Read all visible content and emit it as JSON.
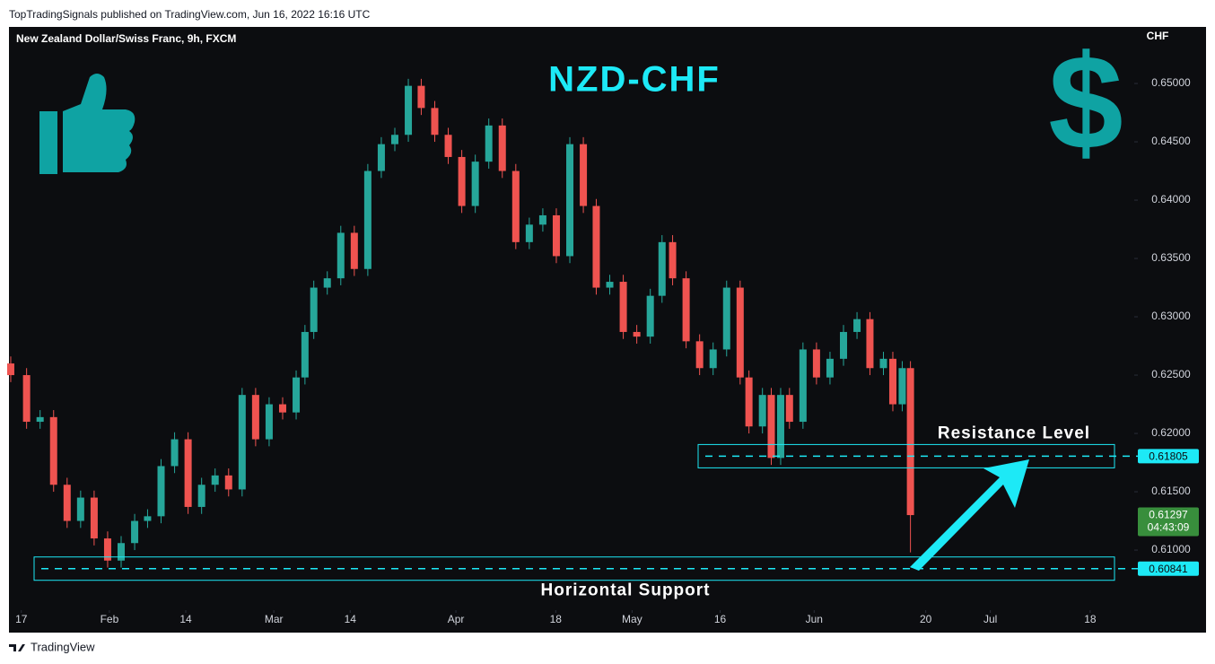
{
  "header": {
    "publisher": "TopTradingSignals published on TradingView.com, Jun 16, 2022 16:16 UTC"
  },
  "chart_data": {
    "type": "candlestick",
    "title": "NZD-CHF",
    "subtitle": "New Zealand Dollar/Swiss Franc, 9h, FXCM",
    "y_axis_label": "CHF",
    "icon_text": "$",
    "up_color": "#26a69a",
    "down_color": "#ef5350",
    "x": [
      15.2,
      17.9,
      20.2,
      22.5,
      24.8,
      27.1,
      29.4,
      31.7,
      34.0,
      36.3,
      38.5,
      40.8,
      43.1,
      45.4,
      47.7,
      50.0,
      52.3,
      54.6,
      56.9,
      59.2,
      61.5,
      63.8,
      65.3,
      66.8,
      69.1,
      71.4,
      73.7,
      76.0,
      78.3,
      80.6,
      82.9,
      85.1,
      87.4,
      89.7,
      92.0,
      94.3,
      96.6,
      98.9,
      101.2,
      103.5,
      105.8,
      108.1,
      110.4,
      112.7,
      114.9,
      117.2,
      119.5,
      121.8,
      124.1,
      126.1,
      127.9,
      130.2,
      132.5,
      134.8,
      137.1,
      139.4,
      140.9,
      143.2,
      144.7,
      146.3,
      147.8,
      150.1,
      152.4,
      154.7,
      157.0,
      159.3,
      161.5,
      163.8,
      165.4,
      167.0,
      168.4
    ],
    "open": [
      0.626,
      0.625,
      0.621,
      0.6214,
      0.6156,
      0.6125,
      0.6145,
      0.611,
      0.6091,
      0.6106,
      0.6125,
      0.6129,
      0.6172,
      0.6195,
      0.6137,
      0.6156,
      0.6164,
      0.6152,
      0.6233,
      0.6195,
      0.6225,
      0.6218,
      0.6248,
      0.6287,
      0.6325,
      0.6333,
      0.6372,
      0.6341,
      0.6425,
      0.6448,
      0.6456,
      0.6498,
      0.6479,
      0.6456,
      0.6437,
      0.6395,
      0.6433,
      0.6464,
      0.6425,
      0.6364,
      0.6379,
      0.6387,
      0.6352,
      0.6448,
      0.6395,
      0.6325,
      0.633,
      0.6287,
      0.6283,
      0.6318,
      0.6364,
      0.6333,
      0.6279,
      0.6256,
      0.6272,
      0.6325,
      0.6248,
      0.6206,
      0.6233,
      0.6179,
      0.6233,
      0.621,
      0.6272,
      0.6248,
      0.6264,
      0.6287,
      0.6298,
      0.6256,
      0.6264,
      0.6225,
      0.6256
    ],
    "high": [
      0.6266,
      0.6256,
      0.622,
      0.622,
      0.6162,
      0.6151,
      0.6151,
      0.6116,
      0.6112,
      0.6131,
      0.6135,
      0.6178,
      0.6201,
      0.6201,
      0.6162,
      0.617,
      0.617,
      0.6239,
      0.6239,
      0.6231,
      0.6231,
      0.6254,
      0.6293,
      0.6331,
      0.6339,
      0.6378,
      0.6378,
      0.6431,
      0.6454,
      0.6462,
      0.6504,
      0.6504,
      0.6485,
      0.6462,
      0.6443,
      0.6439,
      0.647,
      0.647,
      0.6431,
      0.6385,
      0.6393,
      0.6393,
      0.6454,
      0.6454,
      0.6401,
      0.6336,
      0.6336,
      0.6293,
      0.6324,
      0.637,
      0.637,
      0.6339,
      0.6285,
      0.6278,
      0.6331,
      0.6331,
      0.6254,
      0.6239,
      0.6239,
      0.6239,
      0.6239,
      0.6278,
      0.6278,
      0.627,
      0.6293,
      0.6304,
      0.6304,
      0.627,
      0.627,
      0.6262,
      0.6262
    ],
    "low": [
      0.6244,
      0.6204,
      0.6204,
      0.615,
      0.6119,
      0.6119,
      0.6104,
      0.6085,
      0.6085,
      0.61,
      0.6119,
      0.6123,
      0.6166,
      0.6131,
      0.6131,
      0.615,
      0.6146,
      0.6146,
      0.6189,
      0.6189,
      0.6212,
      0.6212,
      0.6242,
      0.6281,
      0.6319,
      0.6327,
      0.6335,
      0.6335,
      0.6419,
      0.6442,
      0.645,
      0.6473,
      0.645,
      0.6431,
      0.6389,
      0.6389,
      0.6427,
      0.6419,
      0.6358,
      0.6358,
      0.6373,
      0.6346,
      0.6346,
      0.6389,
      0.6319,
      0.6319,
      0.6281,
      0.6277,
      0.6277,
      0.6312,
      0.6327,
      0.6273,
      0.625,
      0.625,
      0.6266,
      0.6242,
      0.62,
      0.62,
      0.6173,
      0.6173,
      0.6204,
      0.6204,
      0.6242,
      0.6242,
      0.6258,
      0.6281,
      0.625,
      0.625,
      0.6219,
      0.6219,
      0.6098
    ],
    "close": [
      0.625,
      0.621,
      0.6214,
      0.6156,
      0.6125,
      0.6145,
      0.611,
      0.6091,
      0.6106,
      0.6125,
      0.6129,
      0.6172,
      0.6195,
      0.6137,
      0.6156,
      0.6164,
      0.6152,
      0.6233,
      0.6195,
      0.6225,
      0.6218,
      0.6248,
      0.6287,
      0.6325,
      0.6333,
      0.6372,
      0.6341,
      0.6425,
      0.6448,
      0.6456,
      0.6498,
      0.6479,
      0.6456,
      0.6437,
      0.6395,
      0.6433,
      0.6464,
      0.6425,
      0.6364,
      0.6379,
      0.6387,
      0.6352,
      0.6448,
      0.6395,
      0.6325,
      0.633,
      0.6287,
      0.6283,
      0.6318,
      0.6364,
      0.6333,
      0.6279,
      0.6256,
      0.6272,
      0.6325,
      0.6248,
      0.6206,
      0.6233,
      0.6179,
      0.6233,
      0.621,
      0.6272,
      0.6248,
      0.6264,
      0.6287,
      0.6298,
      0.6256,
      0.6264,
      0.6225,
      0.6256,
      0.613
    ],
    "xlim": [
      14.9,
      206.2
    ],
    "xticks": [
      17,
      {
        "value": 32,
        "label": "Feb"
      },
      {
        "value": 45,
        "label": "14"
      },
      {
        "value": 60,
        "label": "Mar"
      },
      {
        "value": 73,
        "label": "14"
      },
      {
        "value": 91,
        "label": "Apr"
      },
      {
        "value": 108,
        "label": "18"
      },
      {
        "value": 121,
        "label": "May"
      },
      {
        "value": 136,
        "label": "16"
      },
      {
        "value": 152,
        "label": "Jun"
      },
      {
        "value": 171,
        "label": "20"
      },
      {
        "value": 182,
        "label": "Jul"
      },
      {
        "value": 199,
        "label": "18"
      }
    ],
    "ylim": [
      0.60485,
      0.65485
    ],
    "yticks": [
      {
        "value": 0.61,
        "label": "0.61000"
      },
      {
        "value": 0.615,
        "label": "0.61500"
      },
      {
        "value": 0.62,
        "label": "0.62000"
      },
      {
        "value": 0.625,
        "label": "0.62500"
      },
      {
        "value": 0.63,
        "label": "0.63000"
      },
      {
        "value": 0.635,
        "label": "0.63500"
      },
      {
        "value": 0.64,
        "label": "0.64000"
      },
      {
        "value": 0.645,
        "label": "0.64500"
      },
      {
        "value": 0.65,
        "label": "0.65000"
      }
    ],
    "levels": [
      {
        "name": "Resistance Level",
        "value": 0.61805
      },
      {
        "name": "Horizontal Support",
        "value": 0.60841
      }
    ],
    "last_price": {
      "value": 0.61297,
      "countdown": "04:43:09"
    }
  },
  "footer": {
    "brand": "TradingView"
  }
}
